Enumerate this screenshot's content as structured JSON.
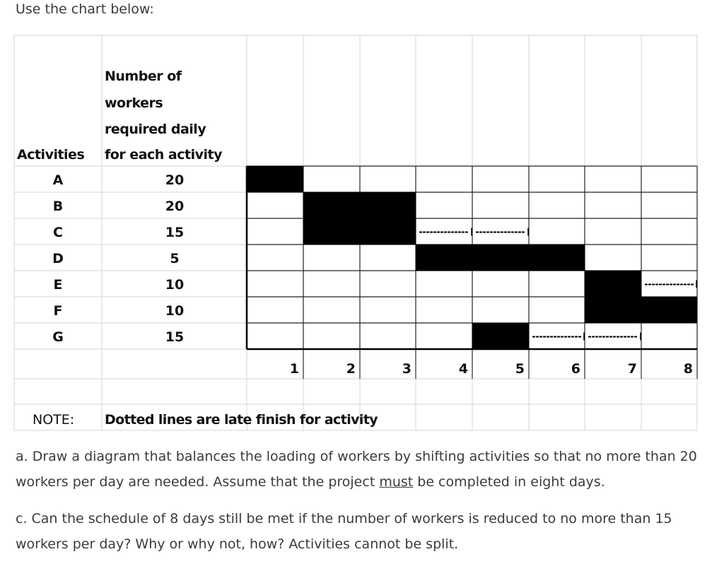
{
  "intro": "Use the chart below:",
  "chart_data": {
    "type": "table",
    "header_activities": "Activities",
    "header_workers": [
      "Number of",
      "workers",
      "required daily",
      "for each activity"
    ],
    "activities": [
      {
        "name": "A",
        "workers": "20",
        "bars": [
          [
            1,
            1
          ]
        ],
        "dotted": []
      },
      {
        "name": "B",
        "workers": "20",
        "bars": [
          [
            2,
            3
          ]
        ],
        "dotted": []
      },
      {
        "name": "C",
        "workers": "15",
        "bars": [
          [
            2,
            3
          ]
        ],
        "dotted": [
          [
            4,
            5
          ]
        ]
      },
      {
        "name": "D",
        "workers": "5",
        "bars": [
          [
            4,
            6
          ]
        ],
        "dotted": []
      },
      {
        "name": "E",
        "workers": "10",
        "bars": [
          [
            7,
            7
          ]
        ],
        "dotted": [
          [
            8,
            8
          ]
        ]
      },
      {
        "name": "F",
        "workers": "10",
        "bars": [
          [
            7,
            8
          ]
        ],
        "dotted": []
      },
      {
        "name": "G",
        "workers": "15",
        "bars": [
          [
            5,
            5
          ]
        ],
        "dotted": [
          [
            6,
            7
          ]
        ]
      }
    ],
    "days": [
      "1",
      "2",
      "3",
      "4",
      "5",
      "6",
      "7",
      "8"
    ],
    "note_label": "NOTE:",
    "note_text": "Dotted lines are late finish for activity"
  },
  "question_a": {
    "before": "a. Draw a diagram that balances the loading of workers by shifting activities so that no more than 20 workers per day are needed. Assume that the project ",
    "underlined": "must",
    "after": " be completed in eight days."
  },
  "question_c": "c. Can the schedule of 8 days still be met if the number of workers is reduced to no more than 15 workers per day? Why or why not, how? Activities cannot be split."
}
